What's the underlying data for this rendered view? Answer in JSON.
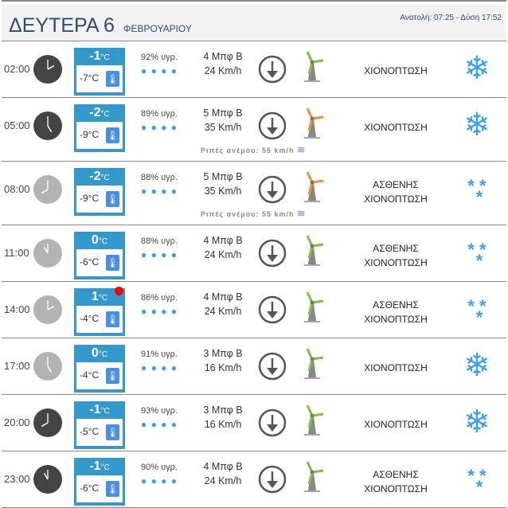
{
  "header": {
    "day": "ΔΕΥΤΕΡΑ 6",
    "month": "ΦΕΒΡΟΥΑΡΙΟΥ",
    "sun": "Ανατολή: 07:25  - Δύση 17:52"
  },
  "colors": {
    "night_clock": "#444444",
    "day_clock": "#b3b3b3",
    "temp_box": "#3399cc",
    "drops": "#3a9ee8",
    "wind_low": "#7dc242",
    "wind_mid": "#f0922e",
    "alert": "#ff0000"
  },
  "rows": [
    {
      "time": "02:00",
      "night": true,
      "temp": "-1",
      "unit": "°C",
      "feels": "-7°C",
      "humidity": "92% υγρ.",
      "drops": "💧💧💧💧",
      "beaufort": "4 Μπφ Β",
      "speed": "24 Km/h",
      "gust": "",
      "mill": "green",
      "desc": "ΧΙΟΝΟΠΤΩΣΗ",
      "desc2": "",
      "icon": "snowflake-icon",
      "alert": false
    },
    {
      "time": "05:00",
      "night": true,
      "temp": "-2",
      "unit": "°C",
      "feels": "-9°C",
      "humidity": "89% υγρ.",
      "beaufort": "5 Μπφ Β",
      "speed": "35 Km/h",
      "gust": "Ριπές ανέμου: 55 km/h",
      "mill": "orange",
      "desc": "ΧΙΟΝΟΠΤΩΣΗ",
      "desc2": "",
      "icon": "snowflake-icon",
      "alert": false
    },
    {
      "time": "08:00",
      "night": false,
      "temp": "-2",
      "unit": "°C",
      "feels": "-9°C",
      "humidity": "88% υγρ.",
      "beaufort": "5 Μπφ Β",
      "speed": "35 Km/h",
      "gust": "Ριπές ανέμου: 55 km/h",
      "mill": "orange",
      "desc": "ΑΣΘΕΝΗΣ",
      "desc2": "ΧΙΟΝΟΠΤΩΣΗ",
      "icon": "light-snow-icon",
      "alert": false
    },
    {
      "time": "11:00",
      "night": false,
      "temp": "0",
      "unit": "°C",
      "feels": "-6°C",
      "humidity": "88% υγρ.",
      "beaufort": "4 Μπφ Β",
      "speed": "24 Km/h",
      "gust": "",
      "mill": "green",
      "desc": "ΑΣΘΕΝΗΣ",
      "desc2": "ΧΙΟΝΟΠΤΩΣΗ",
      "icon": "light-snow-icon",
      "alert": false
    },
    {
      "time": "14:00",
      "night": false,
      "temp": "1",
      "unit": "°C",
      "feels": "-4°C",
      "humidity": "86% υγρ.",
      "beaufort": "4 Μπφ Β",
      "speed": "24 Km/h",
      "gust": "",
      "mill": "green",
      "desc": "ΑΣΘΕΝΗΣ",
      "desc2": "ΧΙΟΝΟΠΤΩΣΗ",
      "icon": "light-snow-icon",
      "alert": true
    },
    {
      "time": "17:00",
      "night": false,
      "temp": "0",
      "unit": "°C",
      "feels": "-4°C",
      "humidity": "91% υγρ.",
      "beaufort": "3 Μπφ Β",
      "speed": "16 Km/h",
      "gust": "",
      "mill": "green",
      "desc": "ΧΙΟΝΟΠΤΩΣΗ",
      "desc2": "",
      "icon": "snowflake-icon",
      "alert": false
    },
    {
      "time": "20:00",
      "night": true,
      "temp": "-1",
      "unit": "°C",
      "feels": "-5°C",
      "humidity": "93% υγρ.",
      "beaufort": "3 Μπφ Β",
      "speed": "16 Km/h",
      "gust": "",
      "mill": "green",
      "desc": "ΧΙΟΝΟΠΤΩΣΗ",
      "desc2": "",
      "icon": "snowflake-icon",
      "alert": false
    },
    {
      "time": "23:00",
      "night": true,
      "temp": "-1",
      "unit": "°C",
      "feels": "-6°C",
      "humidity": "90% υγρ.",
      "beaufort": "4 Μπφ Β",
      "speed": "24 Km/h",
      "gust": "",
      "mill": "green",
      "desc": "ΑΣΘΕΝΗΣ",
      "desc2": "ΧΙΟΝΟΠΤΩΣΗ",
      "icon": "light-snow-icon",
      "alert": false
    }
  ]
}
